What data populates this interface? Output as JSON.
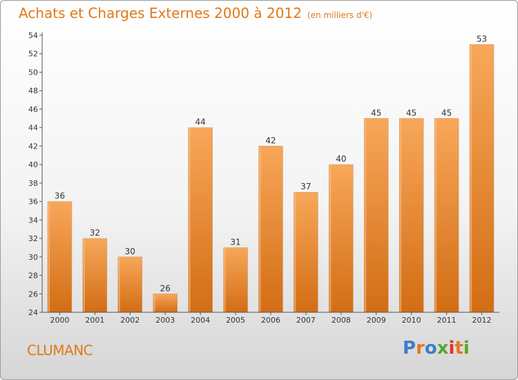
{
  "title": "Achats et Charges Externes 2000 à 2012",
  "subtitle": "(en milliers d'€)",
  "commune": "CLUMANC",
  "logo": {
    "text": "Proxiti",
    "colors": [
      "#3a7fc8",
      "#e07820",
      "#3a7fc8",
      "#58a830",
      "#e03030",
      "#e07820",
      "#58a830"
    ]
  },
  "colors": {
    "accent": "#e0781a",
    "bar_top": "#f8a75a",
    "bar_bottom": "#d26d14"
  },
  "chart_data": {
    "type": "bar",
    "title": "Achats et Charges Externes 2000 à 2012",
    "categories": [
      "2000",
      "2001",
      "2002",
      "2003",
      "2004",
      "2005",
      "2006",
      "2007",
      "2008",
      "2009",
      "2010",
      "2011",
      "2012"
    ],
    "values": [
      36,
      32,
      30,
      26,
      44,
      31,
      42,
      37,
      40,
      45,
      45,
      45,
      53
    ],
    "ylim": [
      24,
      54
    ],
    "yticks": [
      24,
      26,
      28,
      30,
      32,
      34,
      36,
      38,
      40,
      42,
      44,
      46,
      48,
      50,
      52,
      54
    ],
    "grid": false,
    "data_labels": true
  }
}
